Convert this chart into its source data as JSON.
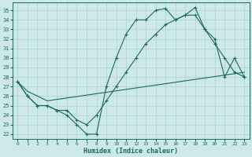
{
  "xlabel": "Humidex (Indice chaleur)",
  "bg_color": "#cce8e8",
  "line_color": "#1a6b5a",
  "grid_color": "#b0d0d0",
  "xlim": [
    -0.5,
    23.5
  ],
  "ylim": [
    21.5,
    35.8
  ],
  "yticks": [
    22,
    23,
    24,
    25,
    26,
    27,
    28,
    29,
    30,
    31,
    32,
    33,
    34,
    35
  ],
  "xticks": [
    0,
    1,
    2,
    3,
    4,
    5,
    6,
    7,
    8,
    9,
    10,
    11,
    12,
    13,
    14,
    15,
    16,
    17,
    18,
    19,
    20,
    21,
    22,
    23
  ],
  "series1_x": [
    0,
    1,
    2,
    3,
    4,
    5,
    6,
    7,
    8,
    9,
    10,
    11,
    12,
    13,
    14,
    15,
    16,
    17,
    18,
    19,
    20,
    21,
    22,
    23
  ],
  "series1_y": [
    27.5,
    26,
    25,
    25,
    24.5,
    24,
    23,
    22,
    22,
    27,
    30,
    32.5,
    34,
    34,
    35,
    35.2,
    34,
    34.5,
    35.3,
    33,
    32,
    28,
    30,
    28
  ],
  "series2_x": [
    0,
    1,
    2,
    3,
    4,
    5,
    6,
    7,
    8,
    9,
    10,
    11,
    12,
    13,
    14,
    15,
    16,
    17,
    18,
    19,
    20,
    21,
    22,
    23
  ],
  "series2_y": [
    27.5,
    26,
    25,
    25,
    24.5,
    24.5,
    23.5,
    23,
    24,
    25.5,
    27,
    28.5,
    30,
    31.5,
    32.5,
    33.5,
    34,
    34.5,
    34.5,
    33,
    31.5,
    30,
    28.5,
    28
  ],
  "series3_x": [
    0,
    1,
    3,
    23
  ],
  "series3_y": [
    27.5,
    26.5,
    25.5,
    28.5
  ]
}
